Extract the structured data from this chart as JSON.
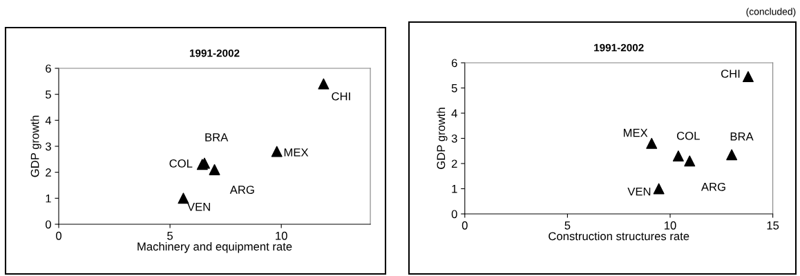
{
  "chart_data": [
    {
      "type": "scatter",
      "title": "1991-2002",
      "xlabel": "Machinery and equipment rate",
      "ylabel": "GDP growth",
      "x": [
        11.9,
        6.55,
        7.0,
        9.8,
        5.6,
        6.45
      ],
      "values": [
        5.4,
        2.35,
        2.1,
        2.8,
        1.0,
        2.3
      ],
      "color": "#000000",
      "marker": "triangle",
      "xlim": [
        0,
        14
      ],
      "xticks": [
        0,
        5,
        10
      ],
      "ylim": [
        0,
        6
      ],
      "yticks": [
        0,
        1,
        2,
        3,
        4,
        5,
        6
      ],
      "grid": false,
      "legend": false,
      "annotations": [
        {
          "text": "CHI",
          "x": 11.9,
          "y": 5.4
        },
        {
          "text": "BRA",
          "x": 6.55,
          "y": 2.35
        },
        {
          "text": "ARG",
          "x": 7.0,
          "y": 2.1
        },
        {
          "text": "MEX",
          "x": 9.8,
          "y": 2.8
        },
        {
          "text": "VEN",
          "x": 5.6,
          "y": 1.0
        },
        {
          "text": "COL",
          "x": 6.45,
          "y": 2.3
        }
      ]
    },
    {
      "type": "scatter",
      "title": "1991-2002",
      "xlabel": "Construction structures rate",
      "ylabel": "GDP growth",
      "x": [
        13.8,
        13.0,
        10.95,
        9.1,
        9.45,
        10.4
      ],
      "values": [
        5.45,
        2.35,
        2.1,
        2.8,
        1.0,
        2.3
      ],
      "color": "#000000",
      "marker": "triangle",
      "xlim": [
        0,
        15
      ],
      "xticks": [
        0,
        5,
        10,
        15
      ],
      "ylim": [
        0,
        6
      ],
      "yticks": [
        0,
        1,
        2,
        3,
        4,
        5,
        6
      ],
      "grid": false,
      "legend": false,
      "annotations": [
        {
          "text": "CHI",
          "x": 13.8,
          "y": 5.45
        },
        {
          "text": "BRA",
          "x": 13.0,
          "y": 2.35
        },
        {
          "text": "ARG",
          "x": 10.95,
          "y": 2.1
        },
        {
          "text": "MEX",
          "x": 9.1,
          "y": 2.8
        },
        {
          "text": "VEN",
          "x": 9.45,
          "y": 1.0
        },
        {
          "text": "COL",
          "x": 10.4,
          "y": 2.3
        },
        "(concluded)"
      ]
    }
  ]
}
